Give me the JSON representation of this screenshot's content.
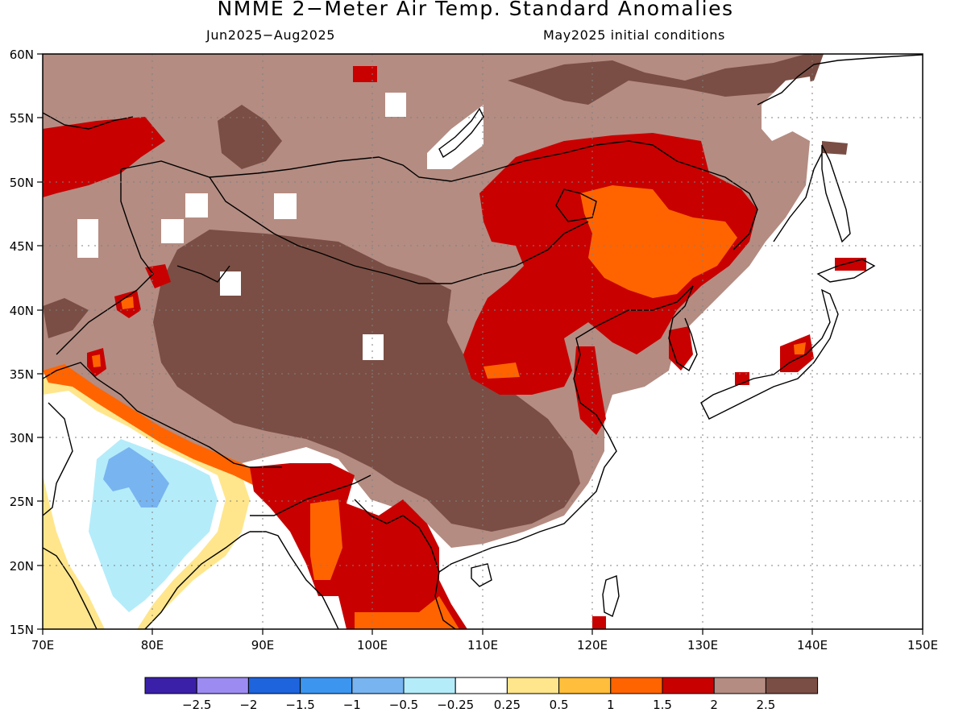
{
  "header": {
    "title": "NMME 2−Meter Air Temp. Standard Anomalies",
    "period": "Jun2025−Aug2025",
    "init": "May2025 initial conditions"
  },
  "axes": {
    "lat_labels": [
      "60N",
      "55N",
      "50N",
      "45N",
      "40N",
      "35N",
      "30N",
      "25N",
      "20N",
      "15N"
    ],
    "lon_labels": [
      "70E",
      "80E",
      "90E",
      "100E",
      "110E",
      "120E",
      "130E",
      "140E",
      "150E"
    ]
  },
  "legend": {
    "colors": [
      "#3a20a8",
      "#9c8cf2",
      "#1e64dc",
      "#3c96f0",
      "#78b4f0",
      "#b4ecfa",
      "#ffffff",
      "#ffe68c",
      "#ffbe3c",
      "#ff6400",
      "#c80000",
      "#b48c82",
      "#7a4e44"
    ],
    "labels": [
      "−2.5",
      "−2",
      "−1.5",
      "−1",
      "−0.5",
      "−0.25",
      "0.25",
      "0.5",
      "1",
      "1.5",
      "2",
      "2.5"
    ]
  }
}
